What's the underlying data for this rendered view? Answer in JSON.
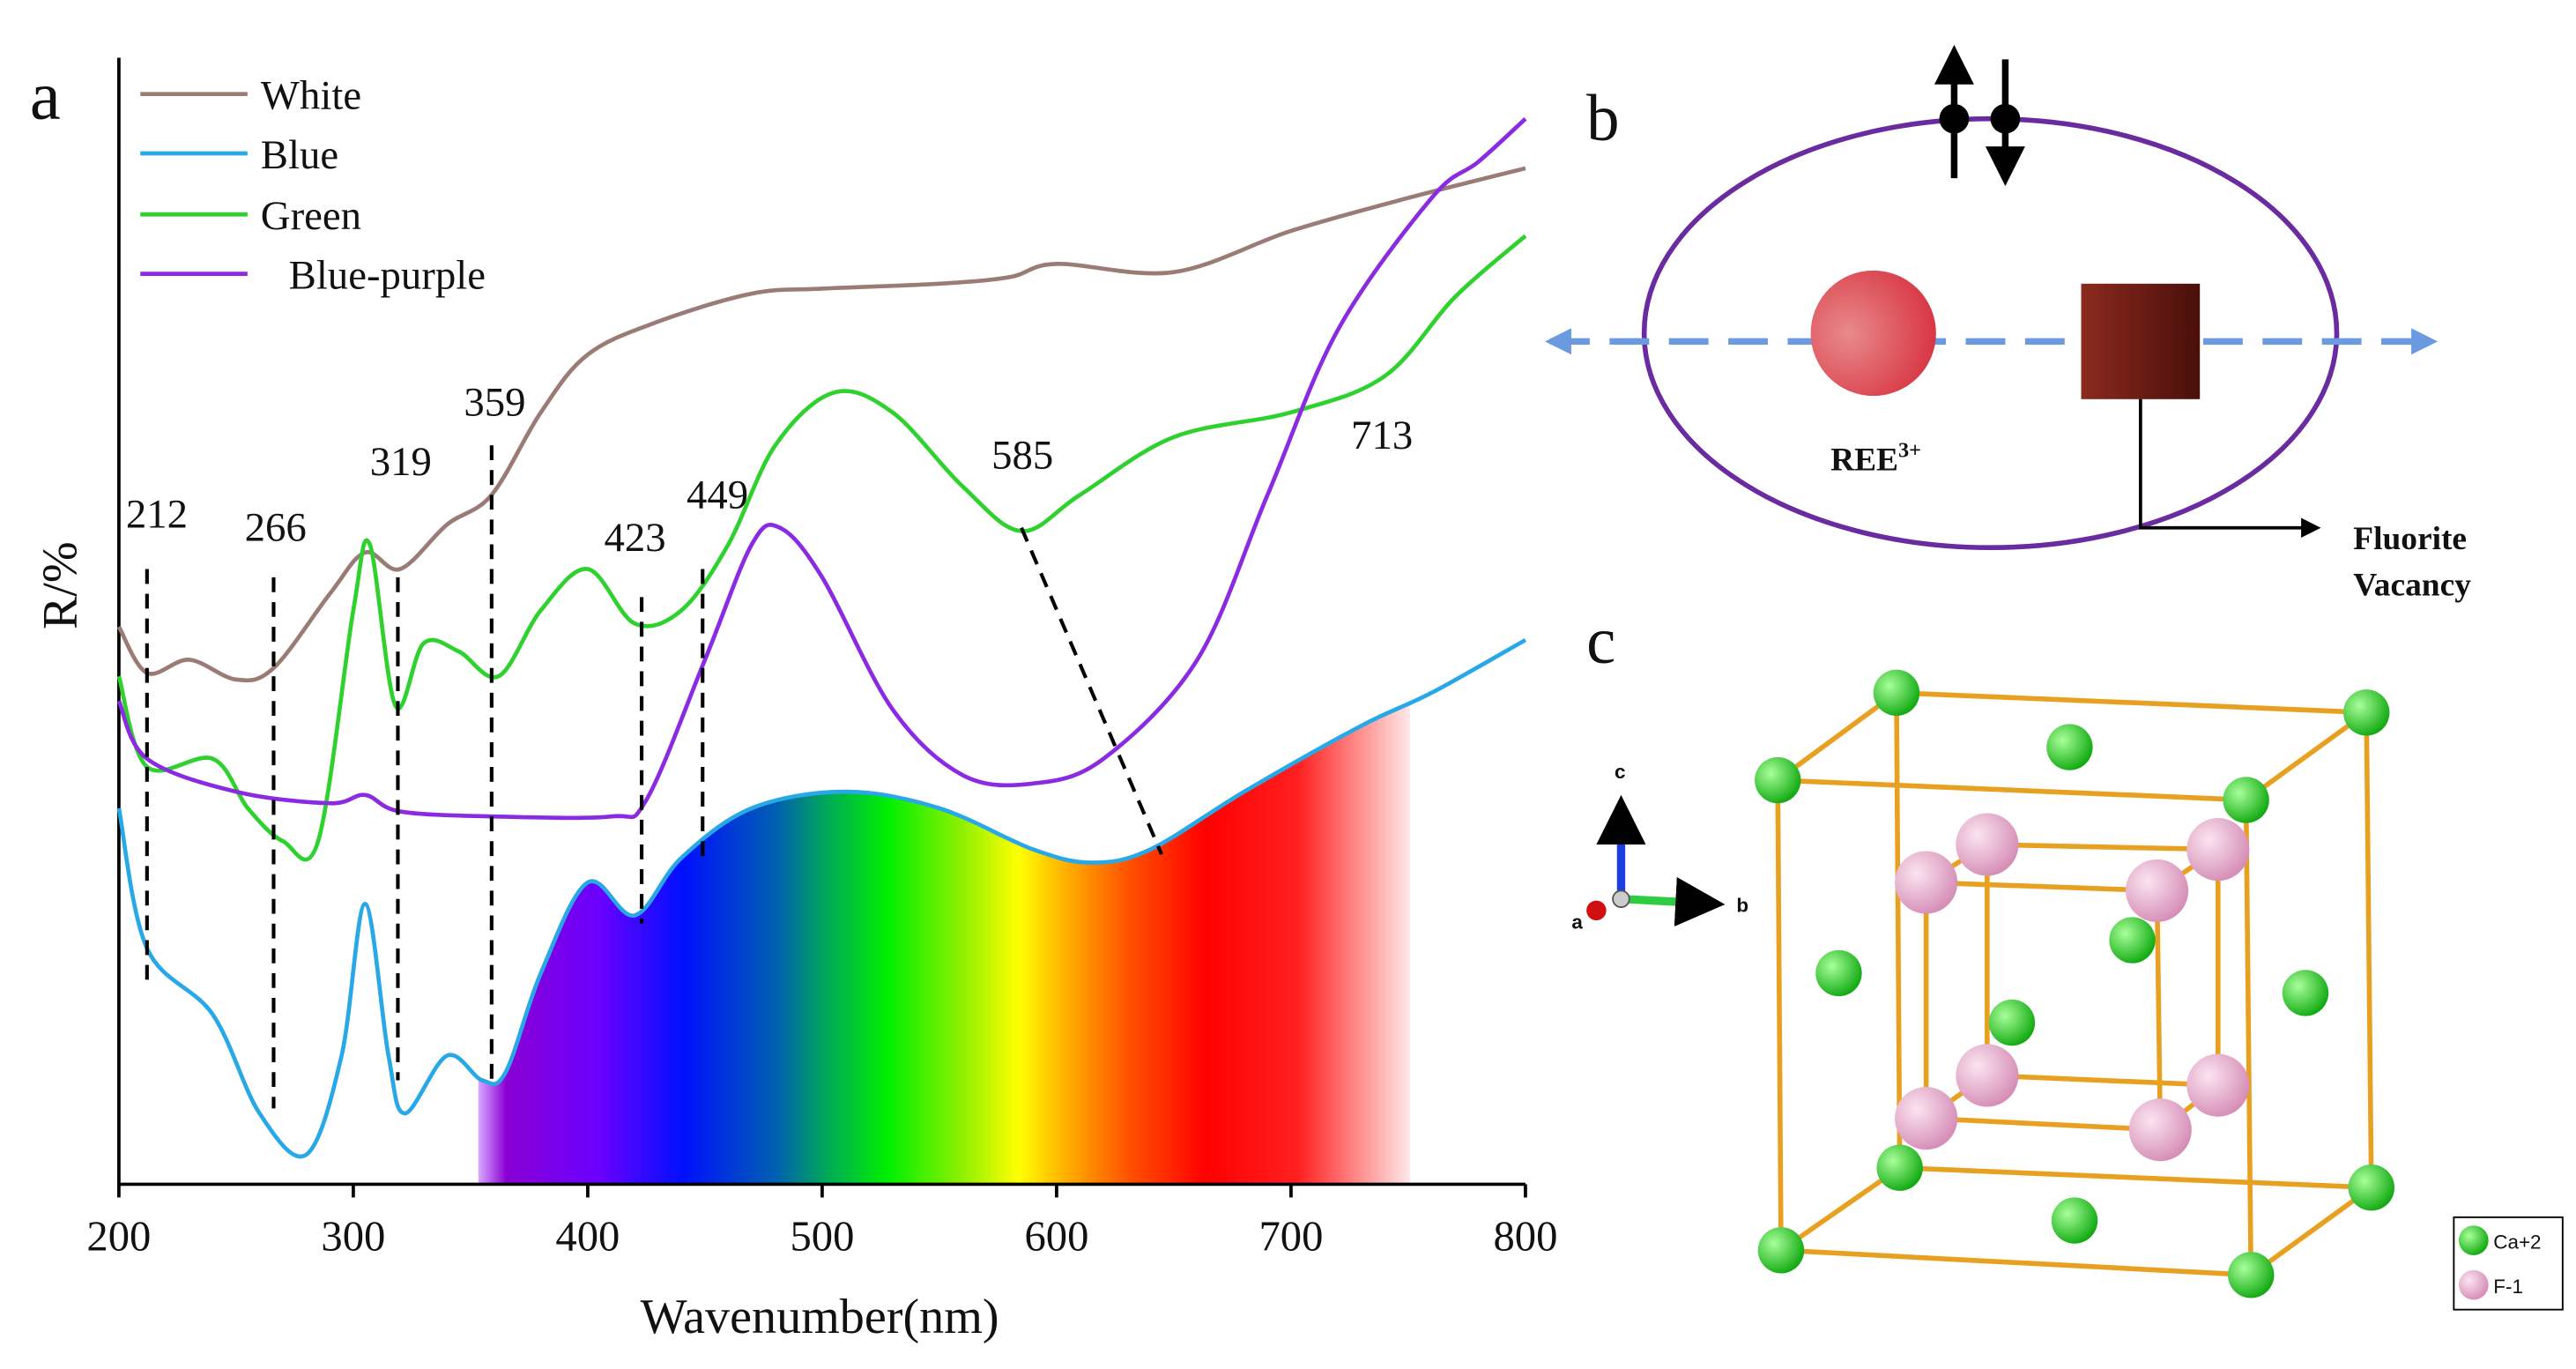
{
  "chart_data": {
    "type": "line",
    "panel_label": "a",
    "xlabel": "Wavenumber(nm)",
    "ylabel": "R/%",
    "xlim": [
      200,
      800
    ],
    "xticks": [
      200,
      300,
      400,
      500,
      600,
      700,
      800
    ],
    "ylim": [
      0,
      683
    ],
    "grid": false,
    "legend": "upper left",
    "series": [
      {
        "name": "White",
        "color": "#9b7b76",
        "x": [
          200,
          212,
          230,
          250,
          266,
          290,
          305,
          320,
          340,
          359,
          380,
          400,
          430,
          470,
          500,
          550,
          580,
          600,
          650,
          700,
          750,
          800
        ],
        "values": [
          338,
          310,
          318,
          306,
          313,
          358,
          383,
          373,
          400,
          418,
          468,
          503,
          523,
          540,
          543,
          546,
          550,
          558,
          553,
          578,
          598,
          616
        ]
      },
      {
        "name": "Blue",
        "color": "#29a8e8",
        "x": [
          200,
          212,
          240,
          260,
          280,
          295,
          305,
          315,
          322,
          340,
          355,
          365,
          380,
          400,
          420,
          440,
          470,
          510,
          550,
          590,
          615,
          640,
          680,
          730,
          760,
          800
        ],
        "values": [
          228,
          143,
          103,
          43,
          18,
          78,
          170,
          78,
          43,
          78,
          63,
          68,
          128,
          183,
          163,
          198,
          228,
          238,
          228,
          203,
          195,
          203,
          238,
          278,
          298,
          330
        ]
      },
      {
        "name": "Green",
        "color": "#2fd12f",
        "x": [
          200,
          212,
          240,
          255,
          270,
          285,
          300,
          307,
          318,
          330,
          345,
          362,
          380,
          400,
          420,
          440,
          460,
          480,
          505,
          530,
          560,
          585,
          610,
          650,
          700,
          740,
          770,
          800
        ],
        "values": [
          308,
          253,
          258,
          228,
          208,
          208,
          348,
          388,
          290,
          328,
          323,
          308,
          348,
          373,
          340,
          348,
          388,
          448,
          480,
          468,
          423,
          396,
          418,
          453,
          468,
          490,
          538,
          575
        ]
      },
      {
        "name": "Blue-purple",
        "color": "#8a2be2",
        "x": [
          200,
          212,
          250,
          290,
          305,
          320,
          360,
          410,
          425,
          450,
          470,
          482,
          500,
          530,
          560,
          590,
          620,
          660,
          690,
          720,
          760,
          780,
          800
        ],
        "values": [
          293,
          258,
          238,
          231,
          236,
          226,
          223,
          223,
          233,
          318,
          388,
          398,
          368,
          288,
          248,
          243,
          258,
          318,
          418,
          518,
          598,
          620,
          646
        ]
      }
    ],
    "annotations": [
      {
        "label": "212",
        "x": 212
      },
      {
        "label": "266",
        "x": 266
      },
      {
        "label": "319",
        "x": 319
      },
      {
        "label": "359",
        "x": 359
      },
      {
        "label": "423",
        "x": 423
      },
      {
        "label": "449",
        "x": 449
      },
      {
        "label": "585",
        "x": 585
      },
      {
        "label": "713",
        "x": 713
      }
    ]
  },
  "panel_b": {
    "label": "b",
    "ree": "REE",
    "ree_sup": "3+",
    "vacancy": [
      "Fluorite",
      "Vacancy"
    ]
  },
  "panel_c": {
    "label": "c",
    "axes": [
      "c",
      "a",
      "b"
    ],
    "legend": [
      "Ca+2",
      "F-1"
    ]
  }
}
